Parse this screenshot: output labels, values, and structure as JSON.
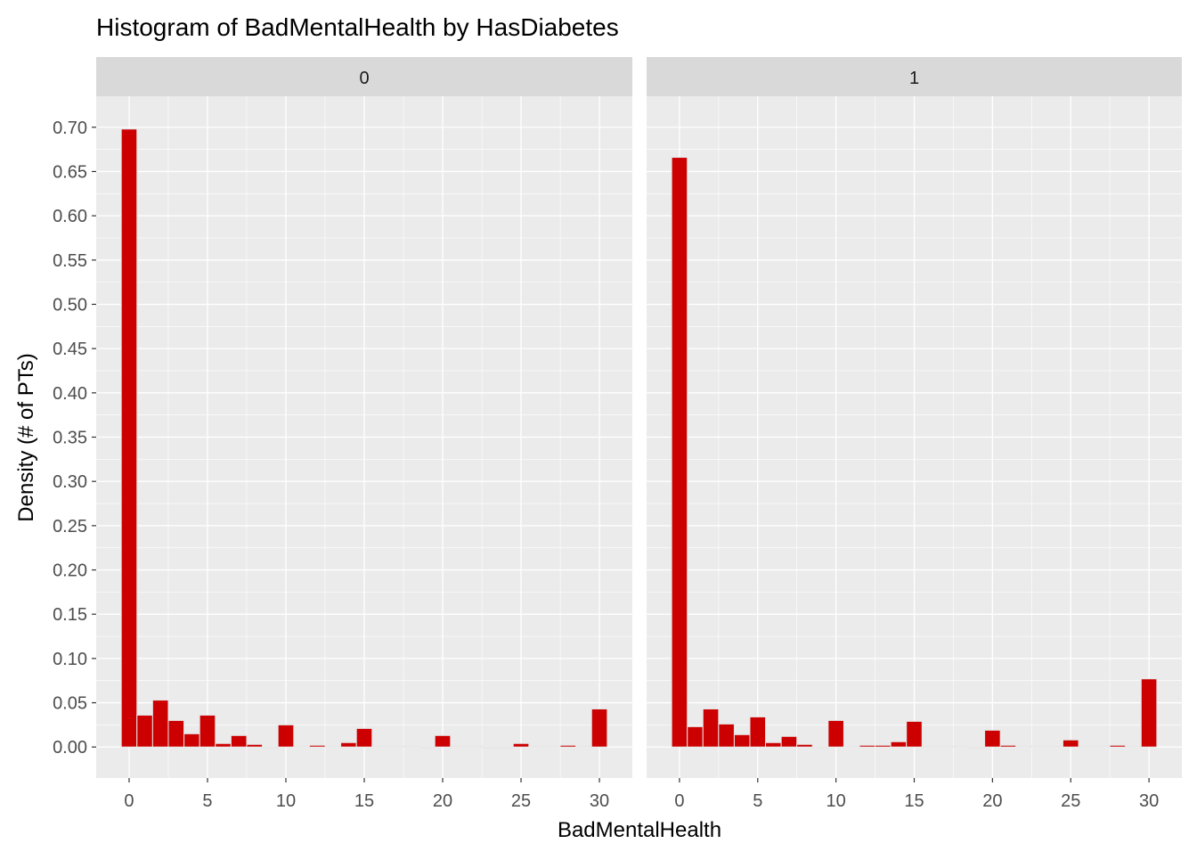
{
  "chart_data": {
    "type": "bar",
    "title": "Histogram of BadMentalHealth by HasDiabetes",
    "xlabel": "BadMentalHealth",
    "ylabel": "Density (# of PTs)",
    "xlim": [
      -2.1,
      32.1
    ],
    "ylim": [
      -0.035,
      0.735
    ],
    "xticks": [
      0,
      5,
      10,
      15,
      20,
      25,
      30
    ],
    "yticks": [
      0,
      0.05,
      0.1,
      0.15,
      0.2,
      0.25,
      0.3,
      0.35,
      0.4,
      0.45,
      0.5,
      0.55,
      0.6,
      0.65,
      0.7
    ],
    "grid": true,
    "bin_width": 1,
    "colors": {
      "fill": "#cc0000",
      "outline": "#e6e6e6",
      "panel": "#ebebeb",
      "strip": "#d9d9d9",
      "grid": "#ffffff",
      "text": "#4d4d4d"
    },
    "facets": [
      {
        "label": "0",
        "bins_x": [
          0,
          1,
          2,
          3,
          4,
          5,
          6,
          7,
          8,
          9,
          10,
          11,
          12,
          13,
          14,
          15,
          16,
          17,
          18,
          19,
          20,
          21,
          22,
          23,
          24,
          25,
          26,
          27,
          28,
          29,
          30
        ],
        "values": [
          0.698,
          0.036,
          0.053,
          0.03,
          0.015,
          0.036,
          0.004,
          0.013,
          0.003,
          0,
          0.025,
          0.001,
          0.002,
          0.001,
          0.005,
          0.021,
          0.001,
          0.001,
          0.001,
          0,
          0.013,
          0.001,
          0.001,
          0,
          0,
          0.004,
          0.001,
          0.001,
          0.002,
          0.001,
          0.043
        ]
      },
      {
        "label": "1",
        "bins_x": [
          0,
          1,
          2,
          3,
          4,
          5,
          6,
          7,
          8,
          9,
          10,
          11,
          12,
          13,
          14,
          15,
          16,
          17,
          18,
          19,
          20,
          21,
          22,
          23,
          24,
          25,
          26,
          27,
          28,
          29,
          30
        ],
        "values": [
          0.666,
          0.023,
          0.043,
          0.026,
          0.014,
          0.034,
          0.005,
          0.012,
          0.003,
          0,
          0.03,
          0.001,
          0.002,
          0.002,
          0.006,
          0.029,
          0.001,
          0.001,
          0.001,
          0,
          0.019,
          0.002,
          0.001,
          0.001,
          0.001,
          0.008,
          0.001,
          0.001,
          0.002,
          0.001,
          0.077
        ]
      }
    ]
  }
}
